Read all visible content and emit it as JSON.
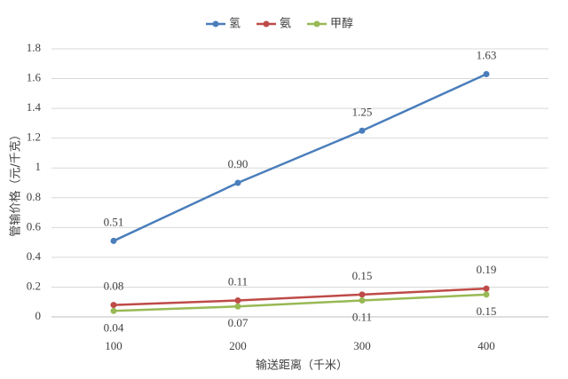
{
  "chart_data": {
    "type": "line",
    "x_label": "输送距离（千米）",
    "y_label": "管输价格（元/千克）",
    "categories": [
      "100",
      "200",
      "300",
      "400"
    ],
    "series": [
      {
        "name": "氢",
        "color": "#4a7ebb",
        "values": [
          0.51,
          0.9,
          1.25,
          1.63
        ],
        "value_labels": [
          "0.51",
          "0.90",
          "1.25",
          "1.63"
        ],
        "label_position": "above"
      },
      {
        "name": "氨",
        "color": "#be4b48",
        "values": [
          0.08,
          0.11,
          0.15,
          0.19
        ],
        "value_labels": [
          "0.08",
          "0.11",
          "0.15",
          "0.19"
        ],
        "label_position": "above"
      },
      {
        "name": "甲醇",
        "color": "#98b954",
        "values": [
          0.04,
          0.07,
          0.11,
          0.15
        ],
        "value_labels": [
          "0.04",
          "0.07",
          "0.11",
          "0.15"
        ],
        "label_position": "below"
      }
    ],
    "ylim": [
      0,
      1.8
    ],
    "yticks": [
      0,
      0.2,
      0.4,
      0.6,
      0.8,
      1,
      1.2,
      1.4,
      1.6,
      1.8
    ],
    "grid": true,
    "legend": "top"
  }
}
